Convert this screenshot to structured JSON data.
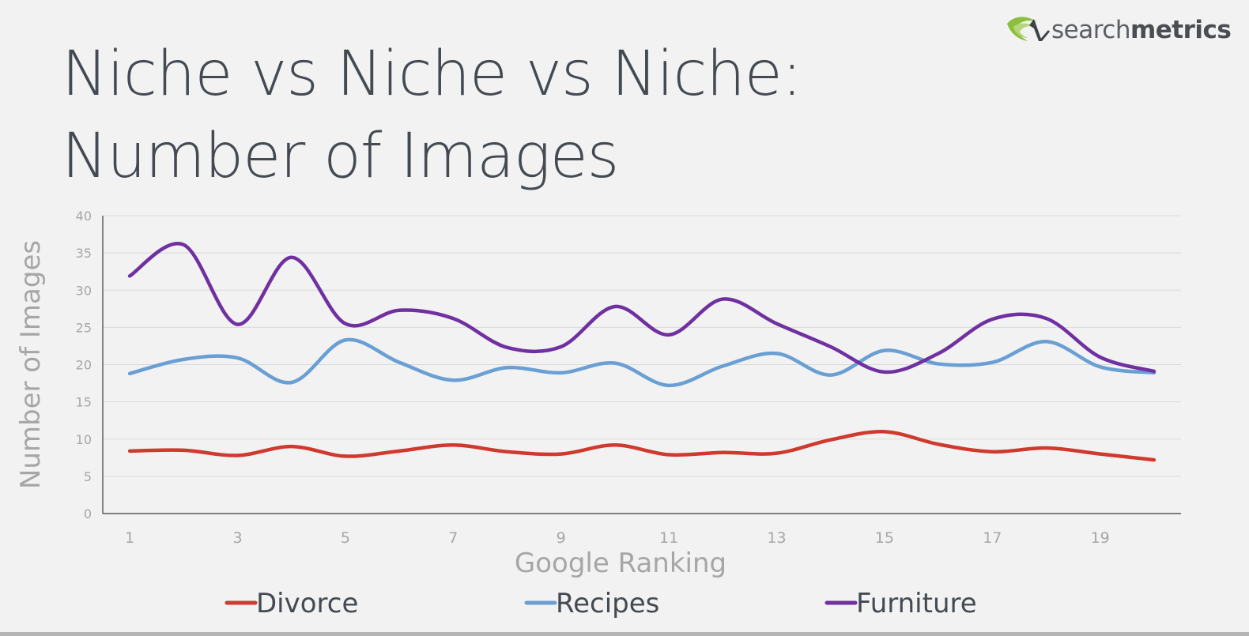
{
  "slide": {
    "title_line1": "Niche vs Niche vs Niche:",
    "title_line2": "Number of Images",
    "logo_light": "search",
    "logo_bold": "metrics"
  },
  "chart_data": {
    "type": "line",
    "title": "Niche vs Niche vs Niche: Number of Images",
    "xlabel": "Google Ranking",
    "ylabel": "Number of Images",
    "x": [
      1,
      2,
      3,
      4,
      5,
      6,
      7,
      8,
      9,
      10,
      11,
      12,
      13,
      14,
      15,
      16,
      17,
      18,
      19,
      20
    ],
    "x_tick_labels": [
      "1",
      "3",
      "5",
      "7",
      "9",
      "11",
      "13",
      "15",
      "17",
      "19"
    ],
    "y_tick_labels": [
      "0",
      "5",
      "10",
      "15",
      "20",
      "25",
      "30",
      "35",
      "40"
    ],
    "ylim": [
      0,
      40
    ],
    "grid": true,
    "legend_position": "bottom",
    "series": [
      {
        "name": "Divorce",
        "color": "#d0392d",
        "values": [
          8.4,
          8.5,
          7.8,
          9.0,
          7.7,
          8.4,
          9.2,
          8.3,
          8.0,
          9.2,
          7.9,
          8.2,
          8.1,
          9.9,
          11.0,
          9.3,
          8.3,
          8.8,
          8.0,
          7.2
        ]
      },
      {
        "name": "Recipes",
        "color": "#6a9fd4",
        "values": [
          18.8,
          20.7,
          20.9,
          17.6,
          23.3,
          20.3,
          17.9,
          19.6,
          18.9,
          20.2,
          17.2,
          19.8,
          21.5,
          18.6,
          21.9,
          20.1,
          20.3,
          23.1,
          19.7,
          18.9
        ]
      },
      {
        "name": "Furniture",
        "color": "#7030a0",
        "values": [
          31.9,
          36.1,
          25.4,
          34.4,
          25.5,
          27.3,
          26.2,
          22.3,
          22.4,
          27.8,
          24.0,
          28.8,
          25.5,
          22.4,
          19.0,
          21.5,
          26.1,
          26.2,
          21.0,
          19.1
        ]
      }
    ]
  },
  "colors": {
    "background": "#f2f2f2",
    "title": "#444a52",
    "axis_text": "#a6a6a6",
    "grid": "#d9d9d9",
    "logo_green": "#8cbf3f"
  }
}
